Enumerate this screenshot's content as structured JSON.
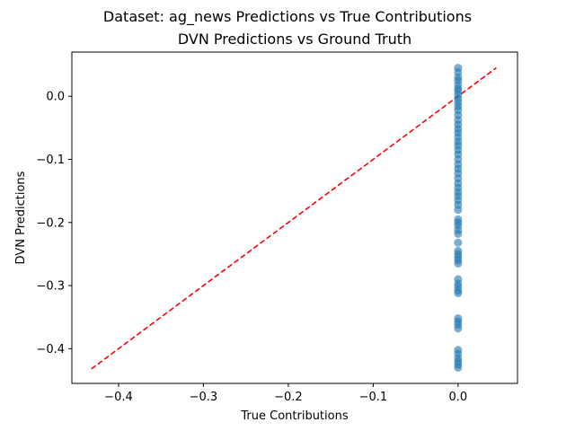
{
  "chart_data": {
    "type": "scatter",
    "suptitle": "Dataset: ag_news Predictions vs True Contributions",
    "title": "DVN Predictions vs Ground Truth",
    "xlabel": "True Contributions",
    "ylabel": "DVN Predictions",
    "xlim": [
      -0.455,
      0.07
    ],
    "ylim": [
      -0.455,
      0.07
    ],
    "x_ticks": [
      -0.4,
      -0.3,
      -0.2,
      -0.1,
      0.0
    ],
    "x_tick_labels": [
      "−0.4",
      "−0.3",
      "−0.2",
      "−0.1",
      "0.0"
    ],
    "y_ticks": [
      0.0,
      -0.1,
      -0.2,
      -0.3,
      -0.4
    ],
    "y_tick_labels": [
      "0.0",
      "−0.1",
      "−0.2",
      "−0.3",
      "−0.4"
    ],
    "grid": false,
    "reference_line": {
      "from": [
        -0.432,
        -0.432
      ],
      "to": [
        0.045,
        0.045
      ],
      "color": "#ff0000",
      "style": "dashed"
    },
    "point_color": "#1f77b4",
    "points": [
      [
        0.0,
        0.045
      ],
      [
        0.0,
        0.038
      ],
      [
        0.0,
        0.03
      ],
      [
        0.0,
        0.025
      ],
      [
        0.0,
        0.018
      ],
      [
        0.0,
        0.012
      ],
      [
        0.0,
        0.008
      ],
      [
        0.0,
        0.002
      ],
      [
        0.0,
        -0.004
      ],
      [
        0.0,
        -0.01
      ],
      [
        0.0,
        -0.016
      ],
      [
        0.0,
        -0.022
      ],
      [
        0.0,
        -0.03
      ],
      [
        0.0,
        -0.038
      ],
      [
        0.0,
        -0.045
      ],
      [
        0.0,
        -0.052
      ],
      [
        0.0,
        -0.058
      ],
      [
        0.0,
        -0.065
      ],
      [
        0.0,
        -0.072
      ],
      [
        0.0,
        -0.078
      ],
      [
        0.0,
        -0.085
      ],
      [
        0.0,
        -0.092
      ],
      [
        0.0,
        -0.1
      ],
      [
        0.0,
        -0.108
      ],
      [
        0.0,
        -0.115
      ],
      [
        0.0,
        -0.122
      ],
      [
        0.0,
        -0.13
      ],
      [
        0.0,
        -0.138
      ],
      [
        0.0,
        -0.145
      ],
      [
        0.0,
        -0.152
      ],
      [
        0.0,
        -0.158
      ],
      [
        0.0,
        -0.165
      ],
      [
        0.0,
        -0.172
      ],
      [
        0.0,
        -0.18
      ],
      [
        0.0,
        -0.195
      ],
      [
        0.0,
        -0.2
      ],
      [
        0.0,
        -0.205
      ],
      [
        0.0,
        -0.212
      ],
      [
        0.0,
        -0.218
      ],
      [
        0.0,
        -0.232
      ],
      [
        0.0,
        -0.245
      ],
      [
        0.0,
        -0.25
      ],
      [
        0.0,
        -0.255
      ],
      [
        0.0,
        -0.26
      ],
      [
        0.0,
        -0.265
      ],
      [
        0.0,
        -0.29
      ],
      [
        0.0,
        -0.297
      ],
      [
        0.0,
        -0.302
      ],
      [
        0.0,
        -0.308
      ],
      [
        0.0,
        -0.312
      ],
      [
        0.0,
        -0.352
      ],
      [
        0.0,
        -0.357
      ],
      [
        0.0,
        -0.362
      ],
      [
        0.0,
        -0.368
      ],
      [
        0.0,
        -0.402
      ],
      [
        0.0,
        -0.408
      ],
      [
        0.0,
        -0.415
      ],
      [
        0.0,
        -0.42
      ],
      [
        0.0,
        -0.425
      ],
      [
        0.0,
        -0.43
      ]
    ]
  }
}
